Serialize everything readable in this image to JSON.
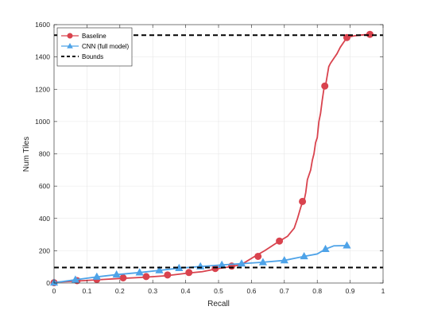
{
  "chart_data": {
    "type": "line",
    "title": "",
    "xlabel": "Recall",
    "ylabel": "Num Tiles",
    "xlim": [
      0,
      1
    ],
    "ylim": [
      0,
      1600
    ],
    "xticks": [
      "0",
      "0.1",
      "0.2",
      "0.3",
      "0.4",
      "0.5",
      "0.6",
      "0.7",
      "0.8",
      "0.9",
      "1"
    ],
    "yticks": [
      "0",
      "200",
      "400",
      "600",
      "800",
      "1000",
      "1200",
      "1400",
      "1600"
    ],
    "grid": true,
    "legend_position": "top-left",
    "series": [
      {
        "name": "Baseline",
        "color": "#d9434e",
        "marker": "circle",
        "line": [
          [
            0,
            5
          ],
          [
            0.05,
            10
          ],
          [
            0.1,
            16
          ],
          [
            0.15,
            22
          ],
          [
            0.2,
            28
          ],
          [
            0.27,
            35
          ],
          [
            0.34,
            45
          ],
          [
            0.41,
            62
          ],
          [
            0.45,
            70
          ],
          [
            0.5,
            90
          ],
          [
            0.54,
            102
          ],
          [
            0.57,
            115
          ],
          [
            0.59,
            140
          ],
          [
            0.61,
            165
          ],
          [
            0.64,
            200
          ],
          [
            0.67,
            240
          ],
          [
            0.69,
            265
          ],
          [
            0.71,
            290
          ],
          [
            0.73,
            340
          ],
          [
            0.74,
            400
          ],
          [
            0.75,
            470
          ],
          [
            0.755,
            500
          ],
          [
            0.76,
            510
          ],
          [
            0.765,
            560
          ],
          [
            0.77,
            640
          ],
          [
            0.78,
            700
          ],
          [
            0.785,
            760
          ],
          [
            0.79,
            800
          ],
          [
            0.795,
            870
          ],
          [
            0.8,
            900
          ],
          [
            0.805,
            1000
          ],
          [
            0.81,
            1050
          ],
          [
            0.815,
            1130
          ],
          [
            0.82,
            1200
          ],
          [
            0.825,
            1220
          ],
          [
            0.83,
            1280
          ],
          [
            0.835,
            1340
          ],
          [
            0.84,
            1360
          ],
          [
            0.85,
            1390
          ],
          [
            0.86,
            1420
          ],
          [
            0.87,
            1460
          ],
          [
            0.88,
            1490
          ],
          [
            0.89,
            1520
          ],
          [
            0.91,
            1530
          ],
          [
            0.93,
            1535
          ],
          [
            0.96,
            1540
          ]
        ],
        "points": [
          [
            0,
            2
          ],
          [
            0.07,
            15
          ],
          [
            0.13,
            22
          ],
          [
            0.21,
            32
          ],
          [
            0.28,
            40
          ],
          [
            0.345,
            50
          ],
          [
            0.41,
            65
          ],
          [
            0.49,
            90
          ],
          [
            0.54,
            105
          ],
          [
            0.62,
            165
          ],
          [
            0.685,
            260
          ],
          [
            0.755,
            505
          ],
          [
            0.823,
            1220
          ],
          [
            0.89,
            1520
          ],
          [
            0.96,
            1540
          ]
        ]
      },
      {
        "name": "CNN (full model)",
        "color": "#4ea3e8",
        "marker": "triangle",
        "line": [
          [
            0,
            2
          ],
          [
            0.065,
            20
          ],
          [
            0.13,
            38
          ],
          [
            0.19,
            52
          ],
          [
            0.26,
            65
          ],
          [
            0.32,
            78
          ],
          [
            0.38,
            92
          ],
          [
            0.445,
            102
          ],
          [
            0.51,
            112
          ],
          [
            0.57,
            120
          ],
          [
            0.63,
            128
          ],
          [
            0.7,
            140
          ],
          [
            0.76,
            165
          ],
          [
            0.8,
            180
          ],
          [
            0.825,
            210
          ],
          [
            0.85,
            230
          ],
          [
            0.89,
            232
          ]
        ],
        "points": [
          [
            0,
            2
          ],
          [
            0.065,
            20
          ],
          [
            0.13,
            38
          ],
          [
            0.19,
            52
          ],
          [
            0.26,
            65
          ],
          [
            0.32,
            78
          ],
          [
            0.38,
            92
          ],
          [
            0.445,
            102
          ],
          [
            0.51,
            112
          ],
          [
            0.57,
            120
          ],
          [
            0.635,
            128
          ],
          [
            0.7,
            140
          ],
          [
            0.76,
            165
          ],
          [
            0.825,
            210
          ],
          [
            0.89,
            232
          ]
        ]
      },
      {
        "name": "Bounds",
        "color": "#000000",
        "style": "dashed",
        "hlines": [
          96,
          1535
        ]
      }
    ]
  }
}
